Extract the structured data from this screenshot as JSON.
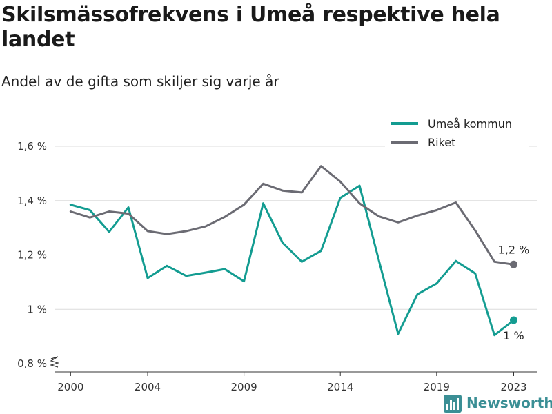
{
  "header": {
    "title": "Skilsmässofrekvens i Umeå respektive hela landet",
    "subtitle": "Andel av de gifta som skiljer sig varje år"
  },
  "brand": {
    "name": "Newsworthy",
    "icon": "bar-chart-logo-icon",
    "color": "#3b8f95"
  },
  "chart_data": {
    "type": "line",
    "title": "Skilsmässofrekvens i Umeå respektive hela landet",
    "subtitle": "Andel av de gifta som skiljer sig varje år",
    "xlabel": "",
    "ylabel": "",
    "x": [
      2000,
      2001,
      2002,
      2003,
      2004,
      2005,
      2006,
      2007,
      2008,
      2009,
      2010,
      2011,
      2012,
      2013,
      2014,
      2015,
      2016,
      2017,
      2018,
      2019,
      2020,
      2021,
      2022,
      2023
    ],
    "xlim": [
      1999.2,
      2024.2
    ],
    "ylim": [
      0.8,
      1.6
    ],
    "x_ticks": [
      2000,
      2004,
      2009,
      2014,
      2019,
      2023
    ],
    "x_tick_labels": [
      "2000",
      "2004",
      "2009",
      "2014",
      "2019",
      "2023"
    ],
    "y_ticks": [
      0.8,
      1.0,
      1.2,
      1.4,
      1.6
    ],
    "y_tick_labels": [
      "0,8 %",
      "1 %",
      "1,2 %",
      "1,4 %",
      "1,6 %"
    ],
    "y_axis_break": true,
    "grid": "horizontal",
    "legend_position": "top-right",
    "series": [
      {
        "name": "Umeå kommun",
        "color": "#139c91",
        "values": [
          1.385,
          1.365,
          1.285,
          1.375,
          1.115,
          1.16,
          1.123,
          1.135,
          1.148,
          1.103,
          1.39,
          1.245,
          1.175,
          1.215,
          1.41,
          1.455,
          1.18,
          0.91,
          1.055,
          1.095,
          1.178,
          1.132,
          0.905,
          0.96
        ],
        "end_label": "1 %"
      },
      {
        "name": "Riket",
        "color": "#6b6b73",
        "values": [
          1.36,
          1.338,
          1.36,
          1.352,
          1.288,
          1.277,
          1.288,
          1.305,
          1.34,
          1.385,
          1.462,
          1.437,
          1.43,
          1.527,
          1.47,
          1.39,
          1.342,
          1.32,
          1.345,
          1.365,
          1.393,
          1.29,
          1.175,
          1.165
        ],
        "end_label": "1,2 %"
      }
    ]
  }
}
